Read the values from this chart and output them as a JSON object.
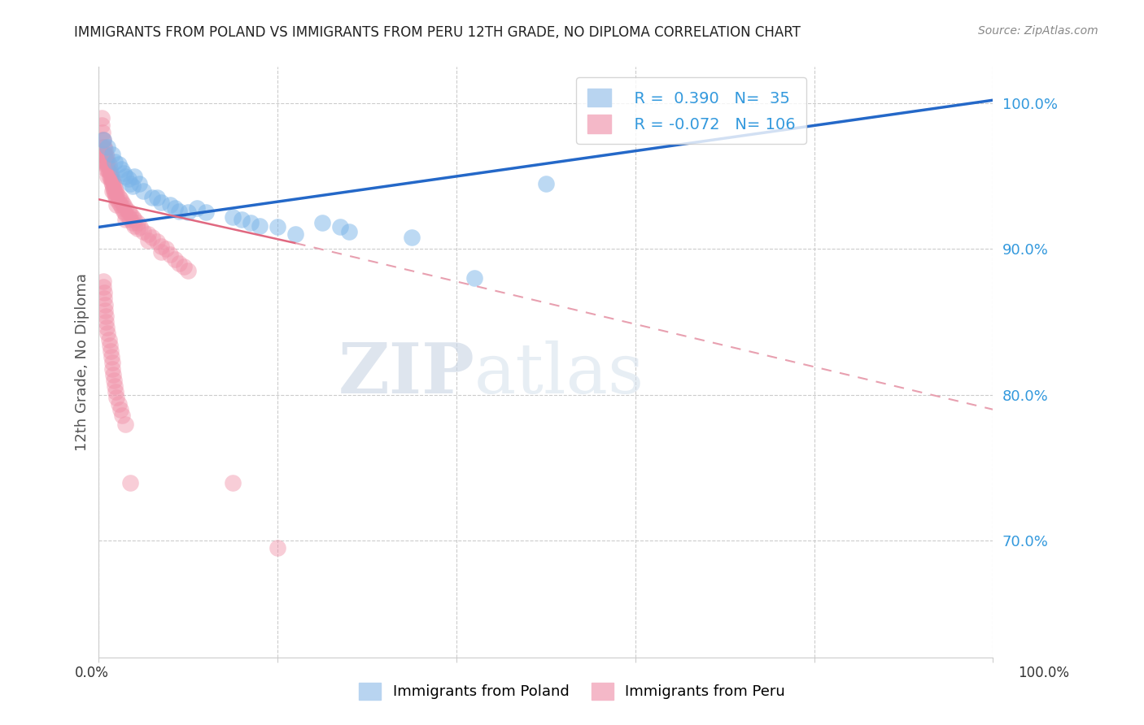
{
  "title": "IMMIGRANTS FROM POLAND VS IMMIGRANTS FROM PERU 12TH GRADE, NO DIPLOMA CORRELATION CHART",
  "source": "Source: ZipAtlas.com",
  "ylabel": "12th Grade, No Diploma",
  "y_ticks": [
    1.0,
    0.9,
    0.8,
    0.7
  ],
  "y_tick_labels": [
    "100.0%",
    "90.0%",
    "80.0%",
    "70.0%"
  ],
  "xlim": [
    0.0,
    1.0
  ],
  "ylim": [
    0.62,
    1.025
  ],
  "poland_color": "#7ab4e8",
  "peru_color": "#f090a8",
  "poland_line_color": "#2468c8",
  "peru_line_color_solid": "#e06880",
  "peru_line_color_dash": "#e8a0b0",
  "watermark_zip": "ZIP",
  "watermark_atlas": "atlas",
  "poland_line": [
    [
      0.0,
      0.915
    ],
    [
      1.0,
      1.002
    ]
  ],
  "peru_line_solid": [
    [
      0.0,
      0.934
    ],
    [
      0.22,
      0.904
    ]
  ],
  "peru_line_dash": [
    [
      0.22,
      0.904
    ],
    [
      1.0,
      0.79
    ]
  ],
  "poland_scatter": [
    [
      0.005,
      0.975
    ],
    [
      0.01,
      0.97
    ],
    [
      0.015,
      0.965
    ],
    [
      0.018,
      0.96
    ],
    [
      0.022,
      0.958
    ],
    [
      0.025,
      0.955
    ],
    [
      0.028,
      0.952
    ],
    [
      0.03,
      0.95
    ],
    [
      0.033,
      0.948
    ],
    [
      0.035,
      0.945
    ],
    [
      0.038,
      0.943
    ],
    [
      0.04,
      0.95
    ],
    [
      0.045,
      0.945
    ],
    [
      0.05,
      0.94
    ],
    [
      0.06,
      0.935
    ],
    [
      0.065,
      0.935
    ],
    [
      0.07,
      0.932
    ],
    [
      0.08,
      0.93
    ],
    [
      0.085,
      0.928
    ],
    [
      0.09,
      0.926
    ],
    [
      0.1,
      0.925
    ],
    [
      0.11,
      0.928
    ],
    [
      0.12,
      0.925
    ],
    [
      0.15,
      0.922
    ],
    [
      0.16,
      0.92
    ],
    [
      0.17,
      0.918
    ],
    [
      0.18,
      0.916
    ],
    [
      0.2,
      0.915
    ],
    [
      0.22,
      0.91
    ],
    [
      0.25,
      0.918
    ],
    [
      0.27,
      0.915
    ],
    [
      0.28,
      0.912
    ],
    [
      0.35,
      0.908
    ],
    [
      0.42,
      0.88
    ],
    [
      0.5,
      0.945
    ]
  ],
  "peru_scatter": [
    [
      0.003,
      0.99
    ],
    [
      0.003,
      0.985
    ],
    [
      0.004,
      0.98
    ],
    [
      0.004,
      0.975
    ],
    [
      0.005,
      0.975
    ],
    [
      0.005,
      0.97
    ],
    [
      0.005,
      0.965
    ],
    [
      0.006,
      0.97
    ],
    [
      0.006,
      0.965
    ],
    [
      0.006,
      0.96
    ],
    [
      0.007,
      0.968
    ],
    [
      0.007,
      0.963
    ],
    [
      0.007,
      0.958
    ],
    [
      0.008,
      0.965
    ],
    [
      0.008,
      0.96
    ],
    [
      0.008,
      0.955
    ],
    [
      0.009,
      0.963
    ],
    [
      0.009,
      0.958
    ],
    [
      0.01,
      0.96
    ],
    [
      0.01,
      0.955
    ],
    [
      0.01,
      0.95
    ],
    [
      0.011,
      0.958
    ],
    [
      0.011,
      0.953
    ],
    [
      0.012,
      0.955
    ],
    [
      0.012,
      0.95
    ],
    [
      0.013,
      0.952
    ],
    [
      0.013,
      0.948
    ],
    [
      0.014,
      0.95
    ],
    [
      0.014,
      0.946
    ],
    [
      0.015,
      0.948
    ],
    [
      0.015,
      0.944
    ],
    [
      0.015,
      0.94
    ],
    [
      0.016,
      0.946
    ],
    [
      0.016,
      0.942
    ],
    [
      0.017,
      0.944
    ],
    [
      0.017,
      0.94
    ],
    [
      0.018,
      0.942
    ],
    [
      0.018,
      0.938
    ],
    [
      0.019,
      0.94
    ],
    [
      0.019,
      0.936
    ],
    [
      0.02,
      0.938
    ],
    [
      0.02,
      0.934
    ],
    [
      0.02,
      0.93
    ],
    [
      0.022,
      0.936
    ],
    [
      0.022,
      0.932
    ],
    [
      0.024,
      0.934
    ],
    [
      0.024,
      0.93
    ],
    [
      0.026,
      0.932
    ],
    [
      0.026,
      0.928
    ],
    [
      0.028,
      0.93
    ],
    [
      0.028,
      0.926
    ],
    [
      0.03,
      0.928
    ],
    [
      0.03,
      0.924
    ],
    [
      0.03,
      0.92
    ],
    [
      0.033,
      0.926
    ],
    [
      0.033,
      0.922
    ],
    [
      0.035,
      0.924
    ],
    [
      0.035,
      0.92
    ],
    [
      0.038,
      0.922
    ],
    [
      0.038,
      0.918
    ],
    [
      0.04,
      0.92
    ],
    [
      0.04,
      0.916
    ],
    [
      0.043,
      0.918
    ],
    [
      0.043,
      0.914
    ],
    [
      0.046,
      0.915
    ],
    [
      0.05,
      0.912
    ],
    [
      0.055,
      0.91
    ],
    [
      0.055,
      0.906
    ],
    [
      0.06,
      0.908
    ],
    [
      0.065,
      0.905
    ],
    [
      0.07,
      0.902
    ],
    [
      0.07,
      0.898
    ],
    [
      0.075,
      0.9
    ],
    [
      0.08,
      0.896
    ],
    [
      0.085,
      0.893
    ],
    [
      0.09,
      0.89
    ],
    [
      0.095,
      0.888
    ],
    [
      0.1,
      0.885
    ],
    [
      0.005,
      0.878
    ],
    [
      0.005,
      0.874
    ],
    [
      0.006,
      0.87
    ],
    [
      0.006,
      0.866
    ],
    [
      0.007,
      0.862
    ],
    [
      0.007,
      0.858
    ],
    [
      0.008,
      0.854
    ],
    [
      0.008,
      0.85
    ],
    [
      0.009,
      0.846
    ],
    [
      0.01,
      0.842
    ],
    [
      0.011,
      0.838
    ],
    [
      0.012,
      0.834
    ],
    [
      0.013,
      0.83
    ],
    [
      0.014,
      0.826
    ],
    [
      0.015,
      0.822
    ],
    [
      0.015,
      0.818
    ],
    [
      0.016,
      0.814
    ],
    [
      0.017,
      0.81
    ],
    [
      0.018,
      0.806
    ],
    [
      0.019,
      0.802
    ],
    [
      0.02,
      0.798
    ],
    [
      0.022,
      0.794
    ],
    [
      0.024,
      0.79
    ],
    [
      0.026,
      0.786
    ],
    [
      0.03,
      0.78
    ],
    [
      0.035,
      0.74
    ],
    [
      0.15,
      0.74
    ],
    [
      0.2,
      0.695
    ]
  ]
}
